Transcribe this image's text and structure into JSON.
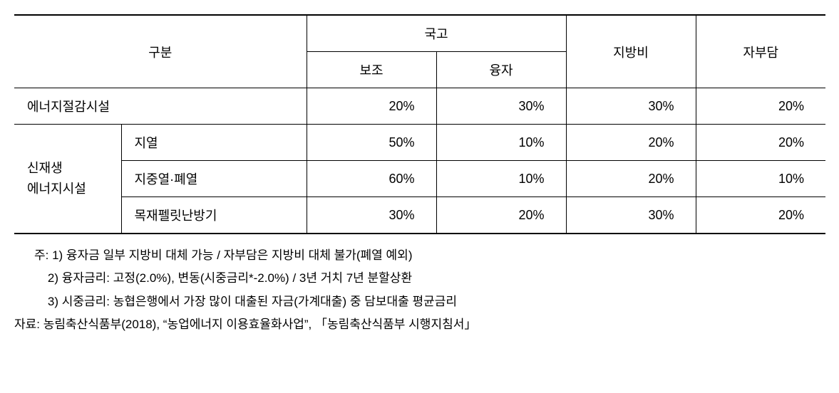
{
  "table": {
    "header": {
      "category": "구분",
      "national": "국고",
      "subsidy": "보조",
      "loan": "융자",
      "local": "지방비",
      "self": "자부담"
    },
    "rows": [
      {
        "cat1": "에너지절감시설",
        "cat2": null,
        "values": [
          "20%",
          "30%",
          "30%",
          "20%"
        ]
      },
      {
        "cat1": "신재생\n에너지시설",
        "cat2": "지열",
        "values": [
          "50%",
          "10%",
          "20%",
          "20%"
        ]
      },
      {
        "cat1": null,
        "cat2": "지중열·폐열",
        "values": [
          "60%",
          "10%",
          "20%",
          "10%"
        ]
      },
      {
        "cat1": null,
        "cat2": "목재펠릿난방기",
        "values": [
          "30%",
          "20%",
          "30%",
          "20%"
        ]
      }
    ]
  },
  "notes": {
    "n1": "주: 1) 융자금 일부 지방비 대체 가능 / 자부담은 지방비 대체 불가(폐열 예외)",
    "n2": "    2) 융자금리: 고정(2.0%), 변동(시중금리*-2.0%) / 3년 거치 7년 분할상환",
    "n3": "    3) 시중금리: 농협은행에서 가장 많이 대출된 자금(가계대출) 중 담보대출 평균금리",
    "src": "자료: 농림축산식품부(2018), “농업에너지 이용효율화사업”, 「농림축산식품부 시행지침서」"
  }
}
